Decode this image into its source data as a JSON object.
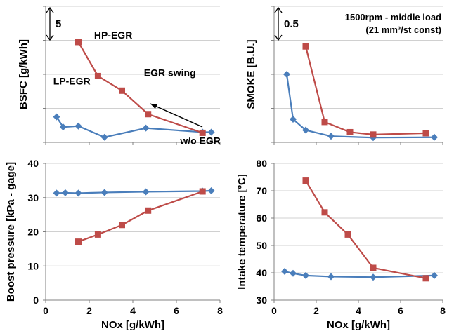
{
  "chart_data": [
    {
      "id": "bsfc",
      "type": "line",
      "title": "",
      "xlabel": "",
      "ylabel": "BSFC [g/kWh]",
      "xlim": [
        0,
        8
      ],
      "ylim": [
        0,
        4
      ],
      "x_ticks": [],
      "y_ticks": [],
      "grid": true,
      "scale_bar_label": "5",
      "annotations": [
        {
          "text": "HP-EGR",
          "x": 3.1,
          "y": 3.05
        },
        {
          "text": "LP-EGR",
          "x": 1.2,
          "y": 1.7
        },
        {
          "text": "EGR swing",
          "x": 5.7,
          "y": 1.95
        },
        {
          "text": "w/o EGR",
          "x": 7.1,
          "y": -0.05
        }
      ],
      "series": [
        {
          "name": "LP-EGR",
          "color": "#4a7ebb",
          "marker": "diamond",
          "x": [
            0.5,
            0.8,
            1.5,
            2.7,
            4.6,
            7.2,
            7.6
          ],
          "y": [
            0.75,
            0.45,
            0.48,
            0.15,
            0.42,
            0.3,
            0.3
          ]
        },
        {
          "name": "HP-EGR",
          "color": "#be4b48",
          "marker": "square",
          "x": [
            1.5,
            2.4,
            3.5,
            4.7,
            7.2
          ],
          "y": [
            2.95,
            1.95,
            1.52,
            0.83,
            0.28
          ]
        }
      ]
    },
    {
      "id": "smoke",
      "type": "line",
      "title": "1500rpm - middle load",
      "subtitle": "(21 mm³/st const)",
      "xlabel": "",
      "ylabel": "SMOKE [B.U.]",
      "xlim": [
        0,
        8
      ],
      "ylim": [
        0,
        4
      ],
      "x_ticks": [],
      "y_ticks": [],
      "grid": true,
      "scale_bar_label": "0.5",
      "series": [
        {
          "name": "LP-EGR",
          "color": "#4a7ebb",
          "marker": "diamond",
          "x": [
            0.6,
            0.9,
            1.5,
            2.7,
            4.7,
            7.6
          ],
          "y": [
            2.0,
            0.68,
            0.36,
            0.18,
            0.14,
            0.15
          ]
        },
        {
          "name": "HP-EGR",
          "color": "#be4b48",
          "marker": "square",
          "x": [
            1.5,
            2.4,
            3.6,
            4.7,
            7.2
          ],
          "y": [
            2.82,
            0.6,
            0.3,
            0.23,
            0.27
          ]
        }
      ]
    },
    {
      "id": "boost",
      "type": "line",
      "title": "",
      "xlabel": "NOx [g/kWh]",
      "ylabel": "Boost pressure [kPa - gage]",
      "xlim": [
        0,
        8
      ],
      "ylim": [
        0,
        40
      ],
      "x_ticks": [
        0,
        2,
        4,
        6,
        8
      ],
      "y_ticks": [
        0,
        10,
        20,
        30,
        40
      ],
      "grid": true,
      "series": [
        {
          "name": "LP-EGR",
          "color": "#4a7ebb",
          "marker": "diamond",
          "x": [
            0.5,
            0.9,
            1.5,
            2.7,
            4.6,
            7.2,
            7.6
          ],
          "y": [
            31.3,
            31.4,
            31.3,
            31.5,
            31.7,
            31.9,
            32.0
          ]
        },
        {
          "name": "HP-EGR",
          "color": "#be4b48",
          "marker": "square",
          "x": [
            1.5,
            2.4,
            3.5,
            4.7,
            7.2
          ],
          "y": [
            17.1,
            19.2,
            22.0,
            26.2,
            31.8
          ]
        }
      ]
    },
    {
      "id": "intake",
      "type": "line",
      "title": "",
      "xlabel": "NOx [g/kWh]",
      "ylabel": "Intake temperature [ºC]",
      "xlim": [
        0,
        8
      ],
      "ylim": [
        30,
        80
      ],
      "x_ticks": [
        0,
        2,
        4,
        6,
        8
      ],
      "y_ticks": [
        30,
        40,
        50,
        60,
        70,
        80
      ],
      "grid": true,
      "series": [
        {
          "name": "LP-EGR",
          "color": "#4a7ebb",
          "marker": "diamond",
          "x": [
            0.5,
            0.9,
            1.5,
            2.7,
            4.7,
            7.6
          ],
          "y": [
            40.5,
            39.8,
            39.0,
            38.6,
            38.4,
            39.0
          ]
        },
        {
          "name": "HP-EGR",
          "color": "#be4b48",
          "marker": "square",
          "x": [
            1.5,
            2.4,
            3.5,
            4.7,
            7.2
          ],
          "y": [
            73.7,
            62.1,
            54.0,
            41.8,
            38.0
          ]
        }
      ]
    }
  ]
}
